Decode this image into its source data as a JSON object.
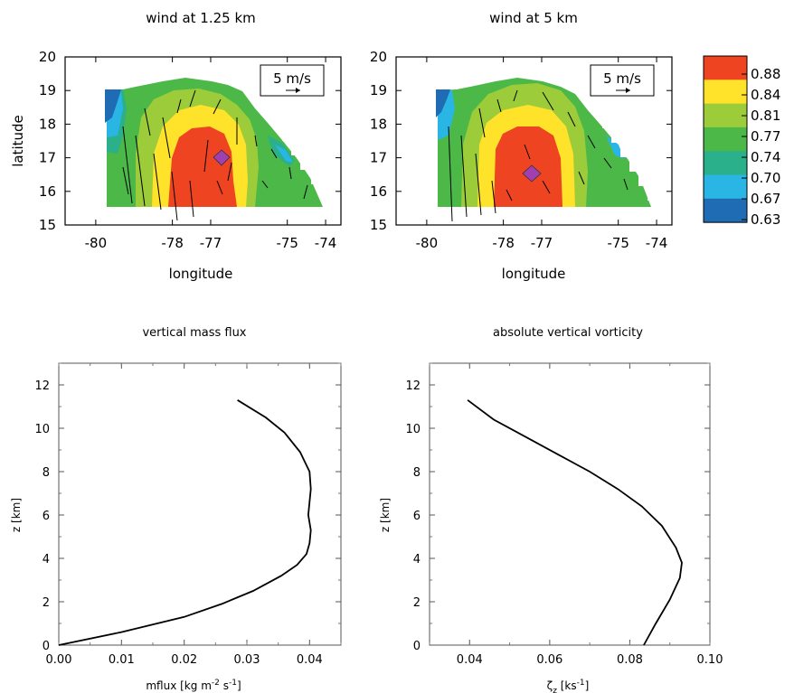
{
  "chart_data": [
    {
      "type": "heatmap",
      "title": "wind at 1.25 km",
      "xlabel": "longitude",
      "ylabel": "latitude",
      "xlim": [
        -80.8,
        -73.6
      ],
      "ylim": [
        15,
        20
      ],
      "xticks": [
        -80,
        -78,
        -77,
        -75,
        -74
      ],
      "yticks": [
        15,
        16,
        17,
        18,
        19,
        20
      ],
      "reference_vector_label": "5 m/s",
      "marker": {
        "lon": -76.8,
        "lat": 17.0,
        "shape": "diamond",
        "color": "#a040b0"
      },
      "colors": {
        "red": "#ee4422",
        "yellow": "#ffe22a",
        "lightgreen": "#9ccc3a",
        "green": "#4cb848",
        "teal": "#2ab08a",
        "cyan": "#2ab6e4",
        "blue": "#1f6cb4"
      }
    },
    {
      "type": "heatmap",
      "title": "wind at 5 km",
      "xlabel": "longitude",
      "ylabel": "",
      "xlim": [
        -80.8,
        -73.6
      ],
      "ylim": [
        15,
        20
      ],
      "xticks": [
        -80,
        -78,
        -77,
        -75,
        -74
      ],
      "yticks": [
        15,
        16,
        17,
        18,
        19,
        20
      ],
      "reference_vector_label": "5 m/s",
      "marker": {
        "lon": -77.1,
        "lat": 16.5,
        "shape": "diamond",
        "color": "#a040b0"
      }
    },
    {
      "type": "colorbar",
      "levels": [
        "0.88",
        "0.84",
        "0.81",
        "0.77",
        "0.74",
        "0.70",
        "0.67",
        "0.63"
      ],
      "colors": [
        "#ee4422",
        "#ffe22a",
        "#9ccc3a",
        "#4cb848",
        "#2ab08a",
        "#2ab6e4",
        "#1f6cb4"
      ]
    },
    {
      "type": "line",
      "title": "vertical mass flux",
      "xlabel": "mflux [kg m",
      "xlabel_sup1": "-2",
      "xlabel_mid": " s",
      "xlabel_sup2": "-1",
      "xlabel_end": "]",
      "ylabel": "z [km]",
      "xlim": [
        0,
        0.045
      ],
      "ylim": [
        0,
        13
      ],
      "xticks": [
        "0.00",
        "0.01",
        "0.02",
        "0.03",
        "0.04"
      ],
      "yticks": [
        "0",
        "2",
        "4",
        "6",
        "8",
        "10",
        "12"
      ],
      "x": [
        0.0,
        0.01,
        0.02,
        0.026,
        0.031,
        0.0355,
        0.038,
        0.0395,
        0.04,
        0.0402,
        0.0398,
        0.04,
        0.0402,
        0.04,
        0.0385,
        0.036,
        0.033,
        0.0285
      ],
      "y": [
        0.0,
        0.6,
        1.3,
        1.9,
        2.5,
        3.2,
        3.7,
        4.2,
        4.7,
        5.3,
        6.0,
        6.6,
        7.2,
        8.0,
        8.9,
        9.8,
        10.5,
        11.3
      ]
    },
    {
      "type": "line",
      "title": "absolute vertical vorticity",
      "xlabel": "ζ",
      "xlabel_sub": "z",
      "xlabel_end": " [ks",
      "xlabel_sup": "-1",
      "xlabel_close": "]",
      "ylabel": "z [km]",
      "xlim": [
        0.03,
        0.1
      ],
      "ylim": [
        0,
        13
      ],
      "xticks": [
        "0.04",
        "0.06",
        "0.08",
        "0.10"
      ],
      "yticks": [
        "0",
        "2",
        "4",
        "6",
        "8",
        "10",
        "12"
      ],
      "x": [
        0.0835,
        0.0865,
        0.09,
        0.0925,
        0.093,
        0.0915,
        0.088,
        0.083,
        0.077,
        0.07,
        0.062,
        0.054,
        0.046,
        0.0395
      ],
      "y": [
        0.0,
        1.0,
        2.1,
        3.1,
        3.8,
        4.5,
        5.5,
        6.4,
        7.2,
        8.0,
        8.8,
        9.6,
        10.4,
        11.3
      ]
    }
  ]
}
